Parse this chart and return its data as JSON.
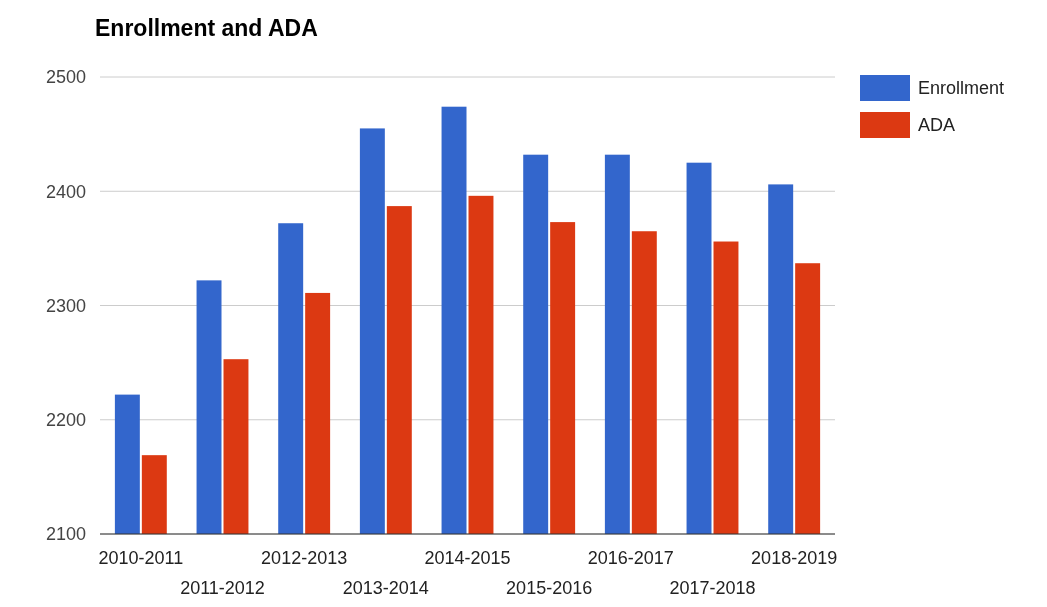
{
  "chart_data": {
    "type": "bar",
    "title": "Enrollment and ADA",
    "categories": [
      "2010-2011",
      "2011-2012",
      "2012-2013",
      "2013-2014",
      "2014-2015",
      "2015-2016",
      "2016-2017",
      "2017-2018",
      "2018-2019"
    ],
    "series": [
      {
        "name": "Enrollment",
        "color": "#3366cc",
        "values": [
          2222,
          2322,
          2372,
          2455,
          2474,
          2432,
          2432,
          2425,
          2406
        ]
      },
      {
        "name": "ADA",
        "color": "#dc3912",
        "values": [
          2169,
          2253,
          2311,
          2387,
          2396,
          2373,
          2365,
          2356,
          2337
        ]
      }
    ],
    "ylim": [
      2100,
      2500
    ],
    "yticks": [
      2100,
      2200,
      2300,
      2400,
      2500
    ],
    "grid": "y",
    "legend": "right"
  }
}
